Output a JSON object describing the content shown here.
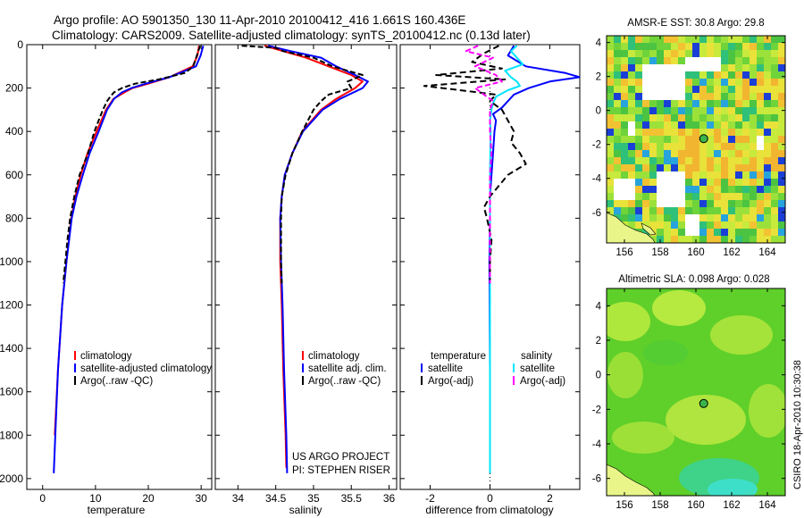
{
  "title_line1": "Argo profile: AO 5901350_130 11-Apr-2010 20100412_416 1.661S 160.436E",
  "title_line2": "Climatology: CARS2009. Satellite-adjusted climatology: synTS_20100412.nc (0.13d later)",
  "credit": "CSIRO 18-Apr-2010 10:30:38",
  "project_line1": "US ARGO PROJECT",
  "project_line2": "PI: STEPHEN RISER",
  "colors": {
    "climatology": "#ff0000",
    "satellite": "#0000ff",
    "argo": "#000000",
    "sal_satellite": "#00e5ff",
    "sal_argo": "#ff00ff"
  },
  "chart_data": [
    {
      "type": "line",
      "xlabel": "temperature",
      "ylabel": "",
      "xlim": [
        -3,
        32
      ],
      "ylim": [
        2050,
        0
      ],
      "xticks": [
        0,
        10,
        20,
        30
      ],
      "yticks": [
        0,
        200,
        400,
        600,
        800,
        1000,
        1200,
        1400,
        1600,
        1800,
        2000
      ],
      "legend": [
        "climatology",
        "satellite-adjusted climatology",
        "Argo(..raw -QC)"
      ],
      "series": [
        {
          "name": "climatology",
          "depth": [
            5,
            50,
            100,
            150,
            180,
            200,
            220,
            250,
            300,
            400,
            500,
            600,
            700,
            800,
            1000,
            1200,
            1500,
            1800
          ],
          "values": [
            29.6,
            29.3,
            28.4,
            24.0,
            20.0,
            17.0,
            15.5,
            13.4,
            12.0,
            10.2,
            8.5,
            7.2,
            6.2,
            5.4,
            4.5,
            3.7,
            2.9,
            2.3
          ]
        },
        {
          "name": "satellite-adjusted climatology",
          "depth": [
            5,
            50,
            100,
            150,
            180,
            200,
            220,
            250,
            300,
            400,
            500,
            600,
            700,
            800,
            1000,
            1200,
            1500,
            1800,
            1975
          ],
          "values": [
            30.4,
            29.9,
            29.0,
            24.0,
            19.5,
            16.8,
            15.0,
            13.5,
            12.2,
            10.6,
            8.9,
            7.6,
            6.4,
            5.5,
            4.5,
            3.7,
            2.9,
            2.4,
            2.1
          ]
        },
        {
          "name": "Argo(..raw -QC)",
          "depth": [
            5,
            50,
            100,
            130,
            160,
            180,
            200,
            220,
            240,
            260,
            300,
            350,
            400,
            500,
            600,
            700,
            800,
            900,
            1000,
            1100
          ],
          "values": [
            29.8,
            29.2,
            28.5,
            27.0,
            22.0,
            17.5,
            15.0,
            13.5,
            12.8,
            12.2,
            11.4,
            10.6,
            9.8,
            8.6,
            7.0,
            6.0,
            5.2,
            4.7,
            4.3,
            3.9
          ]
        }
      ]
    },
    {
      "type": "line",
      "xlabel": "salinity",
      "xlim": [
        33.7,
        36.1
      ],
      "ylim": [
        2050,
        0
      ],
      "xticks": [
        34,
        34.5,
        35,
        35.5,
        36
      ],
      "legend": [
        "climatology",
        "satellite adj. clim.",
        "Argo(..raw -QC)"
      ],
      "series": [
        {
          "name": "climatology",
          "depth": [
            5,
            30,
            60,
            100,
            140,
            170,
            200,
            250,
            300,
            400,
            500,
            600,
            700,
            800,
            1000,
            1200,
            1500,
            1800,
            1950
          ],
          "values": [
            34.35,
            34.6,
            34.9,
            35.2,
            35.5,
            35.65,
            35.55,
            35.3,
            35.1,
            34.85,
            34.72,
            34.62,
            34.58,
            34.56,
            34.56,
            34.58,
            34.6,
            34.63,
            34.64
          ]
        },
        {
          "name": "satellite adj. clim.",
          "depth": [
            5,
            30,
            60,
            100,
            140,
            170,
            200,
            250,
            300,
            400,
            500,
            600,
            700,
            800,
            1000,
            1200,
            1500,
            1800,
            1975
          ],
          "values": [
            34.4,
            34.7,
            35.1,
            35.3,
            35.55,
            35.72,
            35.65,
            35.35,
            35.12,
            34.86,
            34.72,
            34.62,
            34.58,
            34.56,
            34.57,
            34.59,
            34.61,
            34.64,
            34.65
          ]
        },
        {
          "name": "Argo(..raw -QC)",
          "depth": [
            5,
            15,
            30,
            60,
            100,
            140,
            170,
            200,
            230,
            260,
            300,
            400,
            500,
            600,
            700,
            800,
            1000,
            1100
          ],
          "values": [
            34.05,
            34.5,
            34.6,
            35.0,
            35.25,
            35.65,
            35.45,
            35.5,
            35.2,
            35.1,
            35.0,
            34.85,
            34.72,
            34.63,
            34.58,
            34.57,
            34.57,
            34.58
          ]
        }
      ]
    },
    {
      "type": "line",
      "xlabel": "difference from climatology",
      "xlim": [
        -3,
        3
      ],
      "ylim": [
        2050,
        0
      ],
      "xticks": [
        -2,
        0,
        2
      ],
      "legend_temperature": [
        "temperature",
        "satellite",
        "Argo(-adj)"
      ],
      "legend_salinity": [
        "salinity",
        "satellite",
        "Argo(-adj)"
      ],
      "series": [
        {
          "name": "temperature satellite",
          "depth": [
            5,
            50,
            100,
            130,
            150,
            170,
            200,
            230,
            260,
            290,
            320,
            350,
            400,
            500,
            600,
            700,
            800,
            1000,
            1500,
            1975
          ],
          "values": [
            0.8,
            0.6,
            1.2,
            2.5,
            3.0,
            2.0,
            1.3,
            0.8,
            0.6,
            0.4,
            0.1,
            0.2,
            0.15,
            0.1,
            0.05,
            0.0,
            0.0,
            -0.02,
            0.0,
            0.0
          ]
        },
        {
          "name": "temperature Argo(-adj)",
          "depth": [
            5,
            40,
            80,
            110,
            140,
            160,
            190,
            210,
            230,
            260,
            300,
            350,
            400,
            450,
            500,
            550,
            600,
            650,
            700,
            750,
            800,
            900,
            1000,
            1100
          ],
          "values": [
            0.3,
            -0.2,
            -0.6,
            0.4,
            -1.8,
            0.5,
            -2.2,
            -1.0,
            0.2,
            0.0,
            0.4,
            0.6,
            0.8,
            0.7,
            1.0,
            1.2,
            0.6,
            0.3,
            0.0,
            -0.2,
            -0.1,
            0.05,
            0.0,
            0.0
          ]
        },
        {
          "name": "salinity satellite",
          "depth": [
            5,
            30,
            60,
            90,
            120,
            150,
            170,
            190,
            210,
            240,
            270,
            300,
            350,
            400,
            600,
            800,
            1000,
            1500,
            1975
          ],
          "values": [
            0.9,
            0.7,
            0.9,
            1.1,
            0.5,
            0.7,
            0.9,
            1.0,
            0.6,
            0.2,
            0.1,
            0.05,
            0.0,
            0.02,
            0.0,
            0.0,
            0.0,
            0.0,
            0.0
          ]
        },
        {
          "name": "salinity Argo(-adj)",
          "depth": [
            5,
            30,
            60,
            100,
            140,
            170,
            200,
            230,
            260,
            300,
            400,
            500,
            600,
            800,
            1000,
            1100
          ],
          "values": [
            -0.4,
            -0.8,
            0.1,
            -0.5,
            0.2,
            0.4,
            -0.5,
            -0.2,
            0.1,
            0.0,
            0.0,
            0.05,
            0.0,
            0.0,
            0.0,
            0.0
          ]
        }
      ]
    },
    {
      "type": "heatmap",
      "title": "AMSR-E SST: 30.8 Argo: 29.8",
      "xlim": [
        155,
        165
      ],
      "ylim": [
        -7.8,
        4.4
      ],
      "xticks": [
        156,
        158,
        160,
        162,
        164
      ],
      "yticks": [
        -6,
        -4,
        -2,
        0,
        2,
        4
      ],
      "argo_location": {
        "lon": 160.436,
        "lat": -1.661
      }
    },
    {
      "type": "heatmap",
      "title": "Altimetric SLA: 0.098 Argo: 0.028",
      "xlim": [
        155,
        165
      ],
      "ylim": [
        -7.0,
        5.0
      ],
      "xticks": [
        156,
        158,
        160,
        162,
        164
      ],
      "yticks": [
        -6,
        -4,
        -2,
        0,
        2,
        4
      ],
      "argo_location": {
        "lon": 160.436,
        "lat": -1.661
      }
    }
  ]
}
